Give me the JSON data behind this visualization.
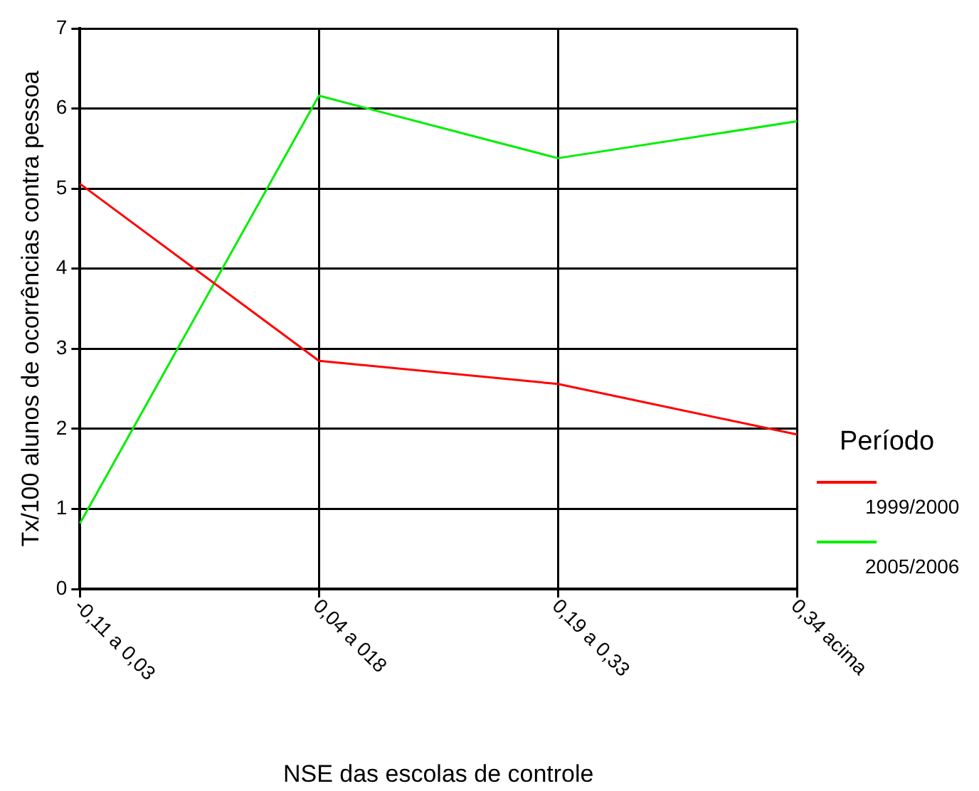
{
  "chart_data": {
    "type": "line",
    "xlabel": "NSE das escolas de controle",
    "ylabel": "Tx/100 alunos de ocorrências contra pessoa",
    "legend_title": "Período",
    "categories": [
      "-0,11 a 0,03",
      "0,04 a 018",
      "0,19 a 0,33",
      "0,34 acima"
    ],
    "series": [
      {
        "name": "1999/2000",
        "color": "#ff0000",
        "values": [
          5.06,
          2.85,
          2.56,
          1.93
        ]
      },
      {
        "name": "2005/2006",
        "color": "#00ee00",
        "values": [
          0.82,
          6.16,
          5.38,
          5.84
        ]
      }
    ],
    "ylim": [
      0,
      7
    ],
    "yticks": [
      0,
      1,
      2,
      3,
      4,
      5,
      6,
      7
    ],
    "grid": true,
    "legend": "right",
    "marker": "none"
  }
}
